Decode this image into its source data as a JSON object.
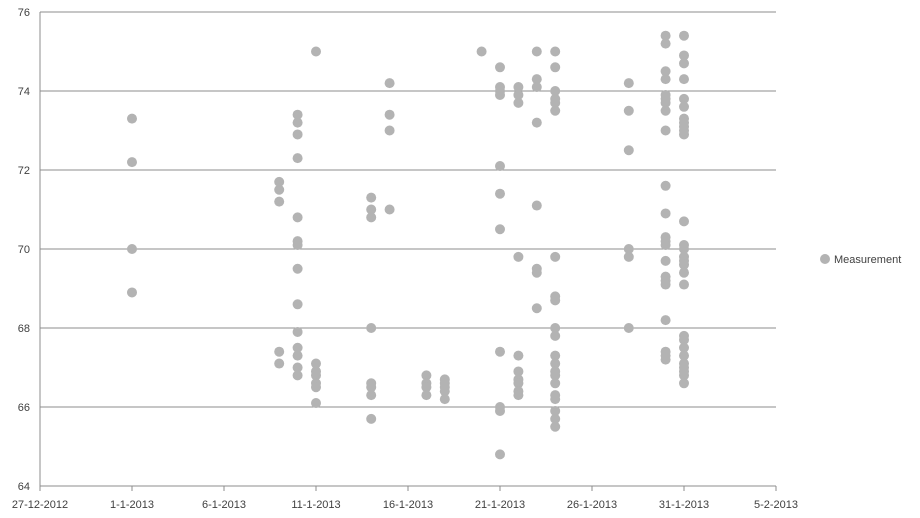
{
  "chart_data": {
    "type": "scatter",
    "title": "",
    "xlabel": "",
    "ylabel": "",
    "ylim": [
      64,
      76
    ],
    "yticks": [
      64,
      66,
      68,
      70,
      72,
      74,
      76
    ],
    "xlim": [
      "2012-12-27",
      "2013-02-05"
    ],
    "xtick_labels": [
      "27-12-2012",
      "1-1-2013",
      "6-1-2013",
      "11-1-2013",
      "16-1-2013",
      "21-1-2013",
      "26-1-2013",
      "31-1-2013",
      "5-2-2013"
    ],
    "grid": "horizontal major gridlines",
    "legend": {
      "position": "right",
      "entries": [
        "Measurement"
      ]
    },
    "marker_color": "#b3b3b3",
    "series": [
      {
        "name": "Measurement",
        "points": [
          {
            "x": "2013-01-01",
            "y": 73.3
          },
          {
            "x": "2013-01-01",
            "y": 72.2
          },
          {
            "x": "2013-01-01",
            "y": 70.0
          },
          {
            "x": "2013-01-01",
            "y": 68.9
          },
          {
            "x": "2013-01-09",
            "y": 71.7
          },
          {
            "x": "2013-01-09",
            "y": 71.5
          },
          {
            "x": "2013-01-09",
            "y": 71.2
          },
          {
            "x": "2013-01-09",
            "y": 67.4
          },
          {
            "x": "2013-01-09",
            "y": 67.1
          },
          {
            "x": "2013-01-10",
            "y": 73.4
          },
          {
            "x": "2013-01-10",
            "y": 73.2
          },
          {
            "x": "2013-01-10",
            "y": 72.9
          },
          {
            "x": "2013-01-10",
            "y": 72.3
          },
          {
            "x": "2013-01-10",
            "y": 70.8
          },
          {
            "x": "2013-01-10",
            "y": 70.2
          },
          {
            "x": "2013-01-10",
            "y": 70.1
          },
          {
            "x": "2013-01-10",
            "y": 69.5
          },
          {
            "x": "2013-01-10",
            "y": 68.6
          },
          {
            "x": "2013-01-10",
            "y": 67.9
          },
          {
            "x": "2013-01-10",
            "y": 67.5
          },
          {
            "x": "2013-01-10",
            "y": 67.3
          },
          {
            "x": "2013-01-10",
            "y": 67.0
          },
          {
            "x": "2013-01-10",
            "y": 66.8
          },
          {
            "x": "2013-01-11",
            "y": 75.0
          },
          {
            "x": "2013-01-11",
            "y": 67.1
          },
          {
            "x": "2013-01-11",
            "y": 66.9
          },
          {
            "x": "2013-01-11",
            "y": 66.8
          },
          {
            "x": "2013-01-11",
            "y": 66.6
          },
          {
            "x": "2013-01-11",
            "y": 66.5
          },
          {
            "x": "2013-01-11",
            "y": 66.1
          },
          {
            "x": "2013-01-14",
            "y": 71.3
          },
          {
            "x": "2013-01-14",
            "y": 71.0
          },
          {
            "x": "2013-01-14",
            "y": 70.8
          },
          {
            "x": "2013-01-14",
            "y": 68.0
          },
          {
            "x": "2013-01-14",
            "y": 66.6
          },
          {
            "x": "2013-01-14",
            "y": 66.5
          },
          {
            "x": "2013-01-14",
            "y": 66.3
          },
          {
            "x": "2013-01-14",
            "y": 65.7
          },
          {
            "x": "2013-01-15",
            "y": 74.2
          },
          {
            "x": "2013-01-15",
            "y": 73.4
          },
          {
            "x": "2013-01-15",
            "y": 73.0
          },
          {
            "x": "2013-01-15",
            "y": 71.0
          },
          {
            "x": "2013-01-17",
            "y": 66.8
          },
          {
            "x": "2013-01-17",
            "y": 66.6
          },
          {
            "x": "2013-01-17",
            "y": 66.5
          },
          {
            "x": "2013-01-17",
            "y": 66.3
          },
          {
            "x": "2013-01-18",
            "y": 66.7
          },
          {
            "x": "2013-01-18",
            "y": 66.6
          },
          {
            "x": "2013-01-18",
            "y": 66.5
          },
          {
            "x": "2013-01-18",
            "y": 66.4
          },
          {
            "x": "2013-01-18",
            "y": 66.2
          },
          {
            "x": "2013-01-20",
            "y": 75.0
          },
          {
            "x": "2013-01-21",
            "y": 74.6
          },
          {
            "x": "2013-01-21",
            "y": 74.1
          },
          {
            "x": "2013-01-21",
            "y": 74.0
          },
          {
            "x": "2013-01-21",
            "y": 73.9
          },
          {
            "x": "2013-01-21",
            "y": 72.1
          },
          {
            "x": "2013-01-21",
            "y": 71.4
          },
          {
            "x": "2013-01-21",
            "y": 70.5
          },
          {
            "x": "2013-01-21",
            "y": 67.4
          },
          {
            "x": "2013-01-21",
            "y": 66.0
          },
          {
            "x": "2013-01-21",
            "y": 65.9
          },
          {
            "x": "2013-01-21",
            "y": 64.8
          },
          {
            "x": "2013-01-22",
            "y": 74.1
          },
          {
            "x": "2013-01-22",
            "y": 73.9
          },
          {
            "x": "2013-01-22",
            "y": 73.7
          },
          {
            "x": "2013-01-22",
            "y": 69.8
          },
          {
            "x": "2013-01-22",
            "y": 67.3
          },
          {
            "x": "2013-01-22",
            "y": 66.9
          },
          {
            "x": "2013-01-22",
            "y": 66.7
          },
          {
            "x": "2013-01-22",
            "y": 66.6
          },
          {
            "x": "2013-01-22",
            "y": 66.4
          },
          {
            "x": "2013-01-22",
            "y": 66.3
          },
          {
            "x": "2013-01-23",
            "y": 75.0
          },
          {
            "x": "2013-01-23",
            "y": 74.3
          },
          {
            "x": "2013-01-23",
            "y": 74.1
          },
          {
            "x": "2013-01-23",
            "y": 73.2
          },
          {
            "x": "2013-01-23",
            "y": 71.1
          },
          {
            "x": "2013-01-23",
            "y": 69.5
          },
          {
            "x": "2013-01-23",
            "y": 69.4
          },
          {
            "x": "2013-01-23",
            "y": 68.5
          },
          {
            "x": "2013-01-24",
            "y": 75.0
          },
          {
            "x": "2013-01-24",
            "y": 74.6
          },
          {
            "x": "2013-01-24",
            "y": 74.0
          },
          {
            "x": "2013-01-24",
            "y": 73.8
          },
          {
            "x": "2013-01-24",
            "y": 73.7
          },
          {
            "x": "2013-01-24",
            "y": 73.5
          },
          {
            "x": "2013-01-24",
            "y": 69.8
          },
          {
            "x": "2013-01-24",
            "y": 68.8
          },
          {
            "x": "2013-01-24",
            "y": 68.7
          },
          {
            "x": "2013-01-24",
            "y": 68.0
          },
          {
            "x": "2013-01-24",
            "y": 67.8
          },
          {
            "x": "2013-01-24",
            "y": 67.3
          },
          {
            "x": "2013-01-24",
            "y": 67.1
          },
          {
            "x": "2013-01-24",
            "y": 66.9
          },
          {
            "x": "2013-01-24",
            "y": 66.8
          },
          {
            "x": "2013-01-24",
            "y": 66.6
          },
          {
            "x": "2013-01-24",
            "y": 66.3
          },
          {
            "x": "2013-01-24",
            "y": 66.2
          },
          {
            "x": "2013-01-24",
            "y": 65.9
          },
          {
            "x": "2013-01-24",
            "y": 65.7
          },
          {
            "x": "2013-01-24",
            "y": 65.5
          },
          {
            "x": "2013-01-28",
            "y": 74.2
          },
          {
            "x": "2013-01-28",
            "y": 73.5
          },
          {
            "x": "2013-01-28",
            "y": 72.5
          },
          {
            "x": "2013-01-28",
            "y": 70.0
          },
          {
            "x": "2013-01-28",
            "y": 69.8
          },
          {
            "x": "2013-01-28",
            "y": 68.0
          },
          {
            "x": "2013-01-30",
            "y": 75.4
          },
          {
            "x": "2013-01-30",
            "y": 75.2
          },
          {
            "x": "2013-01-30",
            "y": 74.5
          },
          {
            "x": "2013-01-30",
            "y": 74.3
          },
          {
            "x": "2013-01-30",
            "y": 73.9
          },
          {
            "x": "2013-01-30",
            "y": 73.8
          },
          {
            "x": "2013-01-30",
            "y": 73.7
          },
          {
            "x": "2013-01-30",
            "y": 73.5
          },
          {
            "x": "2013-01-30",
            "y": 73.0
          },
          {
            "x": "2013-01-30",
            "y": 71.6
          },
          {
            "x": "2013-01-30",
            "y": 70.9
          },
          {
            "x": "2013-01-30",
            "y": 70.3
          },
          {
            "x": "2013-01-30",
            "y": 70.2
          },
          {
            "x": "2013-01-30",
            "y": 70.1
          },
          {
            "x": "2013-01-30",
            "y": 69.7
          },
          {
            "x": "2013-01-30",
            "y": 69.3
          },
          {
            "x": "2013-01-30",
            "y": 69.2
          },
          {
            "x": "2013-01-30",
            "y": 69.1
          },
          {
            "x": "2013-01-30",
            "y": 68.2
          },
          {
            "x": "2013-01-30",
            "y": 67.4
          },
          {
            "x": "2013-01-30",
            "y": 67.3
          },
          {
            "x": "2013-01-30",
            "y": 67.2
          },
          {
            "x": "2013-01-31",
            "y": 75.4
          },
          {
            "x": "2013-01-31",
            "y": 74.9
          },
          {
            "x": "2013-01-31",
            "y": 74.7
          },
          {
            "x": "2013-01-31",
            "y": 74.3
          },
          {
            "x": "2013-01-31",
            "y": 73.8
          },
          {
            "x": "2013-01-31",
            "y": 73.6
          },
          {
            "x": "2013-01-31",
            "y": 73.3
          },
          {
            "x": "2013-01-31",
            "y": 73.2
          },
          {
            "x": "2013-01-31",
            "y": 73.1
          },
          {
            "x": "2013-01-31",
            "y": 73.0
          },
          {
            "x": "2013-01-31",
            "y": 72.9
          },
          {
            "x": "2013-01-31",
            "y": 70.7
          },
          {
            "x": "2013-01-31",
            "y": 70.1
          },
          {
            "x": "2013-01-31",
            "y": 70.0
          },
          {
            "x": "2013-01-31",
            "y": 69.8
          },
          {
            "x": "2013-01-31",
            "y": 69.7
          },
          {
            "x": "2013-01-31",
            "y": 69.6
          },
          {
            "x": "2013-01-31",
            "y": 69.4
          },
          {
            "x": "2013-01-31",
            "y": 69.1
          },
          {
            "x": "2013-01-31",
            "y": 67.8
          },
          {
            "x": "2013-01-31",
            "y": 67.7
          },
          {
            "x": "2013-01-31",
            "y": 67.5
          },
          {
            "x": "2013-01-31",
            "y": 67.3
          },
          {
            "x": "2013-01-31",
            "y": 67.1
          },
          {
            "x": "2013-01-31",
            "y": 67.0
          },
          {
            "x": "2013-01-31",
            "y": 66.9
          },
          {
            "x": "2013-01-31",
            "y": 66.8
          },
          {
            "x": "2013-01-31",
            "y": 66.6
          }
        ]
      }
    ]
  }
}
